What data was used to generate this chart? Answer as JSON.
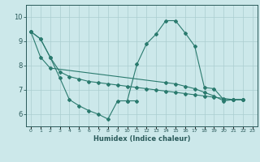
{
  "title": "",
  "xlabel": "Humidex (Indice chaleur)",
  "bg_color": "#cce8ea",
  "grid_color": "#aacdd0",
  "line_color": "#2a7a6e",
  "xlim": [
    -0.5,
    23.5
  ],
  "ylim": [
    5.5,
    10.5
  ],
  "yticks": [
    6,
    7,
    8,
    9,
    10
  ],
  "s1_x": [
    0,
    1,
    2,
    3,
    4,
    5,
    6,
    7,
    8,
    9,
    10,
    11,
    12,
    13,
    14,
    15,
    16,
    17,
    18,
    19,
    20,
    21,
    22
  ],
  "s1_y": [
    9.4,
    9.1,
    8.35,
    7.75,
    7.55,
    7.45,
    7.35,
    7.3,
    7.25,
    7.2,
    7.15,
    7.1,
    7.05,
    7.0,
    6.95,
    6.9,
    6.85,
    6.8,
    6.75,
    6.7,
    6.65,
    6.6,
    6.6
  ],
  "s2_x": [
    0,
    1,
    2,
    3,
    4,
    5,
    6,
    7,
    8,
    9,
    10,
    11
  ],
  "s2_y": [
    9.4,
    9.1,
    8.35,
    7.5,
    6.6,
    6.35,
    6.15,
    6.0,
    5.8,
    6.55,
    6.55,
    6.55
  ],
  "s3_x": [
    10,
    11,
    12,
    13,
    14,
    15,
    16,
    17,
    18,
    19,
    20,
    21,
    22
  ],
  "s3_y": [
    6.55,
    8.05,
    8.9,
    9.3,
    9.85,
    9.85,
    9.35,
    8.8,
    7.1,
    7.05,
    6.6,
    6.6,
    6.6
  ],
  "s4_x": [
    0,
    1,
    2,
    14,
    15,
    16,
    17,
    18,
    19,
    20,
    21,
    22
  ],
  "s4_y": [
    9.4,
    8.35,
    7.9,
    7.3,
    7.25,
    7.15,
    7.05,
    6.9,
    6.75,
    6.55,
    6.6,
    6.6
  ]
}
